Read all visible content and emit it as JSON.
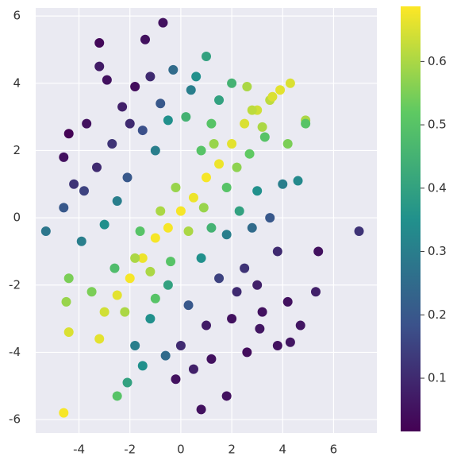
{
  "chart_data": {
    "type": "scatter",
    "x": [
      -5.3,
      7,
      -4.6,
      -0.7,
      -3.2,
      -1.4,
      -3.2,
      -4.4,
      -4.5,
      -4.4,
      -3.2,
      -2.5,
      -2.1,
      0.8,
      1.8,
      -0.6,
      4.3,
      4.9,
      4.9,
      5.4,
      5.3,
      4.3,
      4.7,
      3.8,
      3.1,
      2.6,
      1.0,
      -4.6,
      -4.6,
      -4.4,
      -3.7,
      -2.9,
      -2.3,
      -1.8,
      -1.2,
      -2.7,
      -3.3,
      -2.1,
      -3.8,
      -1.5,
      -0.8,
      -0.3,
      0.4,
      -1.0,
      -2.5,
      -3.0,
      -3.9,
      -4.2,
      -2.0,
      -0.5,
      0.2,
      -2.5,
      -2,
      -1.5,
      -1,
      -0.5,
      0,
      0.5,
      1,
      1.5,
      2,
      2.5,
      3,
      3.5,
      -3,
      -2.2,
      -1.8,
      -1.2,
      -0.8,
      0.3,
      0.9,
      1.3,
      2.2,
      -0.2,
      -1.6,
      -0.4,
      0.8,
      1.8,
      2.7,
      3.3,
      -2.6,
      -3.5,
      -1.0,
      1.5,
      2.5,
      3.0,
      2.0,
      1.0,
      0.3,
      3.8,
      3.5,
      2.8,
      1.8,
      0.8,
      4.2,
      0.0,
      1.2,
      -0.2,
      2.6,
      3.2,
      4.0,
      4.6,
      3.0,
      2.3,
      1.2,
      -0.5,
      -1.2,
      -1.8,
      -1.5,
      0.5,
      2.2,
      1.5,
      2.0,
      3.6,
      3.9,
      2.8,
      3.2,
      4.2,
      1.2,
      0.6
    ],
    "y": [
      -0.4,
      -0.4,
      -5.8,
      5.8,
      5.2,
      5.3,
      4.5,
      -1.8,
      -2.5,
      -3.4,
      -3.6,
      -5.3,
      -4.9,
      -5.7,
      -5.3,
      -4.1,
      4,
      2.9,
      2.8,
      -1,
      -2.2,
      -3.7,
      -3.2,
      -3.8,
      -3.3,
      3.9,
      4.8,
      0.3,
      1.8,
      2.5,
      2.8,
      4.1,
      3.3,
      3.9,
      4.2,
      2.2,
      1.5,
      1.2,
      0.8,
      2.6,
      3.4,
      4.4,
      3.8,
      2.0,
      0.5,
      -0.2,
      -0.7,
      1.0,
      2.8,
      2.9,
      3.0,
      -2.3,
      -1.8,
      -1.2,
      -0.6,
      -0.3,
      0.2,
      0.6,
      1.2,
      1.6,
      2.2,
      2.8,
      3.2,
      3.5,
      -2.8,
      -2.8,
      -1.2,
      -1.6,
      0.2,
      -0.4,
      0.3,
      2.2,
      1.5,
      0.9,
      -0.4,
      -1.3,
      2.0,
      0.9,
      1.9,
      2.4,
      -1.5,
      -2.2,
      -2.4,
      -1.8,
      -1.5,
      -2.0,
      -3.0,
      -3.2,
      -2.6,
      -1.0,
      0.0,
      -0.3,
      -0.5,
      -1.2,
      -2.5,
      -3.8,
      -4.2,
      -4.8,
      -4.0,
      -2.8,
      1.0,
      1.1,
      0.8,
      0.2,
      -0.3,
      -2.0,
      -3.0,
      -3.8,
      -4.4,
      -4.5,
      -2.2,
      3.5,
      4.0,
      3.6,
      3.8,
      3.2,
      2.7,
      2.2,
      2.8,
      4.2
    ],
    "c": [
      0.28,
      0.12,
      0.68,
      0.05,
      0.03,
      0.05,
      0.07,
      0.55,
      0.58,
      0.65,
      0.66,
      0.5,
      0.4,
      0.05,
      0.05,
      0.25,
      0.65,
      0.6,
      0.5,
      0.05,
      0.08,
      0.06,
      0.06,
      0.05,
      0.06,
      0.6,
      0.4,
      0.2,
      0.05,
      0.02,
      0.05,
      0.05,
      0.08,
      0.04,
      0.1,
      0.12,
      0.1,
      0.2,
      0.15,
      0.18,
      0.2,
      0.25,
      0.3,
      0.3,
      0.3,
      0.35,
      0.3,
      0.12,
      0.1,
      0.35,
      0.45,
      0.66,
      0.68,
      0.67,
      0.68,
      0.68,
      0.68,
      0.67,
      0.68,
      0.67,
      0.66,
      0.65,
      0.64,
      0.62,
      0.64,
      0.6,
      0.6,
      0.6,
      0.6,
      0.6,
      0.58,
      0.58,
      0.57,
      0.58,
      0.5,
      0.5,
      0.5,
      0.5,
      0.52,
      0.5,
      0.48,
      0.55,
      0.5,
      0.15,
      0.12,
      0.08,
      0.05,
      0.07,
      0.2,
      0.1,
      0.2,
      0.25,
      0.3,
      0.35,
      0.05,
      0.1,
      0.05,
      0.05,
      0.04,
      0.05,
      0.3,
      0.33,
      0.35,
      0.4,
      0.45,
      0.4,
      0.35,
      0.3,
      0.35,
      0.08,
      0.1,
      0.4,
      0.45,
      0.65,
      0.66,
      0.62,
      0.6,
      0.55,
      0.5,
      0.35
    ],
    "colormap": "viridis",
    "xlim": [
      -5.7,
      7.7
    ],
    "ylim": [
      -6.4,
      6.24
    ],
    "clim": [
      0.016,
      0.687
    ],
    "xticks": [
      -4,
      -2,
      0,
      2,
      4,
      6
    ],
    "yticks": [
      -6,
      -4,
      -2,
      0,
      2,
      4,
      6
    ],
    "cticks": [
      0.1,
      0.2,
      0.3,
      0.4,
      0.5,
      0.6
    ],
    "grid": true
  }
}
